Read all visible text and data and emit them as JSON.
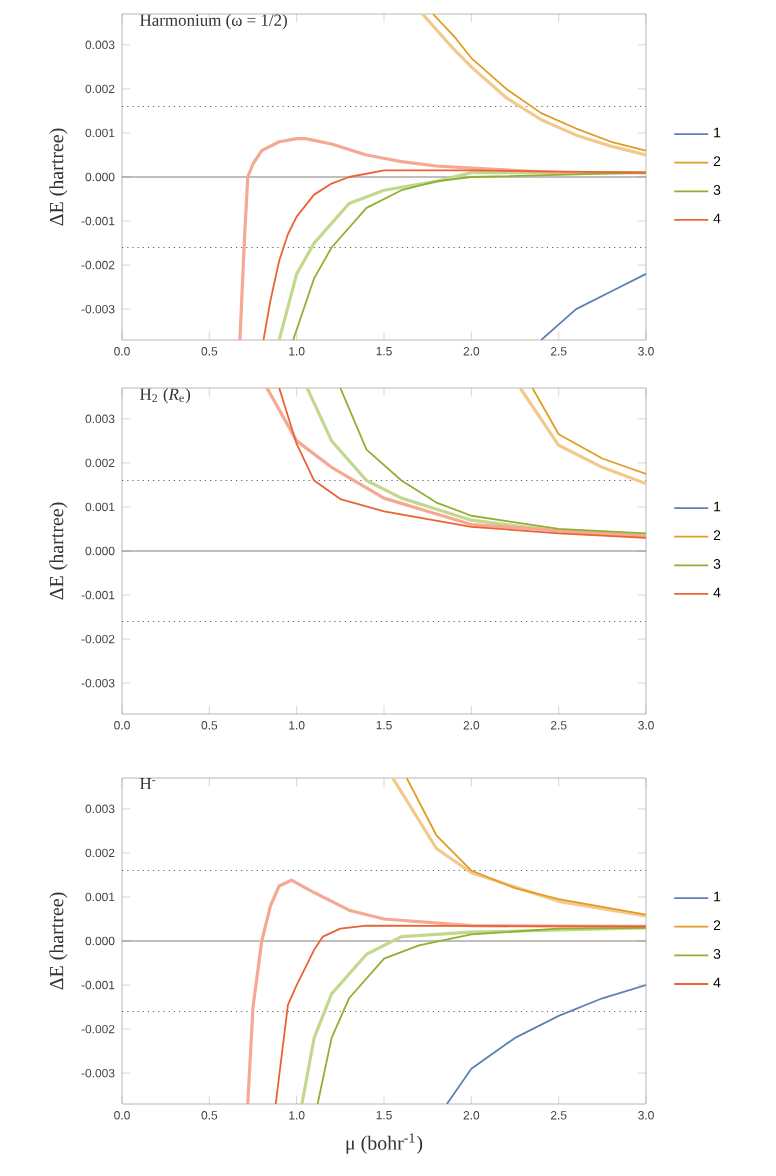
{
  "chart_data": [
    {
      "type": "line",
      "title": "Harmonium (ω = 1/2)",
      "ylabel": "ΔE (hartree)",
      "legend": "right",
      "xlim": [
        0,
        3
      ],
      "ylim": [
        -0.0037,
        0.0037
      ],
      "xticks": [
        {
          "value": 0,
          "label": "0.0"
        },
        {
          "value": 0.5,
          "label": "0.5"
        },
        {
          "value": 1,
          "label": "1.0"
        },
        {
          "value": 1.5,
          "label": "1.5"
        },
        {
          "value": 2,
          "label": "2.0"
        },
        {
          "value": 2.5,
          "label": "2.5"
        },
        {
          "value": 3,
          "label": "3.0"
        }
      ],
      "yticks": [
        {
          "value": -0.003,
          "label": "-0.003"
        },
        {
          "value": -0.002,
          "label": "-0.002"
        },
        {
          "value": -0.001,
          "label": "-0.001"
        },
        {
          "value": 0,
          "label": "0.000"
        },
        {
          "value": 0.001,
          "label": "0.001"
        },
        {
          "value": 0.002,
          "label": "0.002"
        },
        {
          "value": 0.003,
          "label": "0.003"
        }
      ],
      "ref_lines": [
        {
          "axis": "y",
          "value": 0,
          "color": "#808080",
          "line_style": "solid"
        },
        {
          "axis": "y",
          "value": 0.0016,
          "color": "#606060",
          "line_style": "dotted"
        },
        {
          "axis": "y",
          "value": -0.0016,
          "color": "#606060",
          "line_style": "dotted"
        }
      ],
      "series": [
        {
          "color": "#f2c98a",
          "x": [
            1.72,
            1.9,
            2.0,
            2.2,
            2.4,
            2.6,
            2.8,
            3.0
          ],
          "values": [
            0.0037,
            0.0029,
            0.0025,
            0.0018,
            0.0013,
            0.00095,
            0.0007,
            0.0005
          ]
        },
        {
          "color": "#c3d88f",
          "x": [
            0.9,
            1.0,
            1.1,
            1.3,
            1.5,
            1.8,
            2.0,
            3.0
          ],
          "values": [
            -0.0037,
            -0.0022,
            -0.0015,
            -0.0006,
            -0.0003,
            -0.0001,
            0.0001,
            0.0001
          ]
        },
        {
          "color": "#f5a892",
          "x": [
            0.675,
            0.7,
            0.72,
            0.75,
            0.8,
            0.9,
            1.0,
            1.05,
            1.2,
            1.4,
            1.6,
            1.8,
            2.0,
            2.5,
            3.0
          ],
          "values": [
            -0.0037,
            -0.0015,
            0,
            0.0003,
            0.0006,
            0.0008,
            0.00087,
            0.00087,
            0.00075,
            0.0005,
            0.00035,
            0.00025,
            0.0002,
            0.0001,
            0.0001
          ]
        },
        {
          "name": "1",
          "color": "#5e81b5",
          "x": [
            2.4,
            2.6,
            2.8,
            3.0
          ],
          "values": [
            -0.0037,
            -0.003,
            -0.0026,
            -0.0022
          ]
        },
        {
          "name": "2",
          "color": "#e19c24",
          "x": [
            1.78,
            1.9,
            2.0,
            2.2,
            2.4,
            2.6,
            2.8,
            3.0
          ],
          "values": [
            0.0037,
            0.0032,
            0.0027,
            0.002,
            0.00145,
            0.0011,
            0.0008,
            0.0006
          ]
        },
        {
          "name": "3",
          "color": "#8fb032",
          "x": [
            0.98,
            1.1,
            1.2,
            1.4,
            1.6,
            1.8,
            2.0,
            3.0
          ],
          "values": [
            -0.0037,
            -0.0023,
            -0.0016,
            -0.0007,
            -0.0003,
            -0.0001,
            0,
            0.0001
          ]
        },
        {
          "name": "4",
          "color": "#eb6235",
          "x": [
            0.81,
            0.85,
            0.9,
            0.95,
            1.0,
            1.1,
            1.2,
            1.3,
            1.5,
            2.0,
            3.0
          ],
          "values": [
            -0.0037,
            -0.0028,
            -0.0019,
            -0.0013,
            -0.0009,
            -0.0004,
            -0.00015,
            0,
            0.00015,
            0.00015,
            0.0001
          ]
        }
      ]
    },
    {
      "type": "line",
      "title": "H$_{2}$ (*R*$_{e}$)",
      "ylabel": "ΔE (hartree)",
      "legend": "right",
      "xlim": [
        0,
        3
      ],
      "ylim": [
        -0.0037,
        0.0037
      ],
      "xticks": [
        {
          "value": 0,
          "label": "0.0"
        },
        {
          "value": 0.5,
          "label": "0.5"
        },
        {
          "value": 1,
          "label": "1.0"
        },
        {
          "value": 1.5,
          "label": "1.5"
        },
        {
          "value": 2,
          "label": "2.0"
        },
        {
          "value": 2.5,
          "label": "2.5"
        },
        {
          "value": 3,
          "label": "3.0"
        }
      ],
      "yticks": [
        {
          "value": -0.003,
          "label": "-0.003"
        },
        {
          "value": -0.002,
          "label": "-0.002"
        },
        {
          "value": -0.001,
          "label": "-0.001"
        },
        {
          "value": 0,
          "label": "0.000"
        },
        {
          "value": 0.001,
          "label": "0.001"
        },
        {
          "value": 0.002,
          "label": "0.002"
        },
        {
          "value": 0.003,
          "label": "0.003"
        }
      ],
      "ref_lines": [
        {
          "axis": "y",
          "value": 0,
          "color": "#808080",
          "line_style": "solid"
        },
        {
          "axis": "y",
          "value": 0.0016,
          "color": "#606060",
          "line_style": "dotted"
        },
        {
          "axis": "y",
          "value": -0.0016,
          "color": "#606060",
          "line_style": "dotted"
        }
      ],
      "series": [
        {
          "color": "#f2c98a",
          "x": [
            2.28,
            2.5,
            2.75,
            3.0
          ],
          "values": [
            0.0037,
            0.0024,
            0.0019,
            0.00153
          ]
        },
        {
          "color": "#c3d88f",
          "x": [
            1.06,
            1.2,
            1.4,
            1.6,
            2.0,
            2.5,
            3.0
          ],
          "values": [
            0.0037,
            0.0025,
            0.0016,
            0.0012,
            0.0007,
            0.00045,
            0.00035
          ]
        },
        {
          "color": "#f5a892",
          "x": [
            0.83,
            1.0,
            1.2,
            1.5,
            2.0,
            3.0
          ],
          "values": [
            0.0037,
            0.0025,
            0.0019,
            0.0012,
            0.0006,
            0.00033
          ]
        },
        {
          "name": "1",
          "color": "#5e81b5"
        },
        {
          "name": "2",
          "color": "#e19c24",
          "x": [
            2.35,
            2.5,
            2.75,
            3.0
          ],
          "values": [
            0.0037,
            0.00265,
            0.0021,
            0.00175
          ]
        },
        {
          "name": "3",
          "color": "#8fb032",
          "x": [
            1.25,
            1.4,
            1.6,
            1.8,
            2.0,
            2.5,
            3.0
          ],
          "values": [
            0.0037,
            0.0023,
            0.0016,
            0.0011,
            0.0008,
            0.0005,
            0.0004
          ]
        },
        {
          "name": "4",
          "color": "#eb6235",
          "x": [
            0.9,
            1.0,
            1.1,
            1.25,
            1.5,
            2.0,
            2.5,
            3.0
          ],
          "values": [
            0.0037,
            0.00243,
            0.0016,
            0.00118,
            0.0009,
            0.00055,
            0.0004,
            0.0003
          ]
        }
      ]
    },
    {
      "type": "line",
      "title": "H$^{-}$",
      "ylabel": "ΔE (hartree)",
      "xlabel": "μ (bohr$^{-1}$)",
      "legend": "right",
      "xlim": [
        0,
        3
      ],
      "ylim": [
        -0.0037,
        0.0037
      ],
      "xticks": [
        {
          "value": 0,
          "label": "0.0"
        },
        {
          "value": 0.5,
          "label": "0.5"
        },
        {
          "value": 1,
          "label": "1.0"
        },
        {
          "value": 1.5,
          "label": "1.5"
        },
        {
          "value": 2,
          "label": "2.0"
        },
        {
          "value": 2.5,
          "label": "2.5"
        },
        {
          "value": 3,
          "label": "3.0"
        }
      ],
      "yticks": [
        {
          "value": -0.003,
          "label": "-0.003"
        },
        {
          "value": -0.002,
          "label": "-0.002"
        },
        {
          "value": -0.001,
          "label": "-0.001"
        },
        {
          "value": 0,
          "label": "0.000"
        },
        {
          "value": 0.001,
          "label": "0.001"
        },
        {
          "value": 0.002,
          "label": "0.002"
        },
        {
          "value": 0.003,
          "label": "0.003"
        }
      ],
      "ref_lines": [
        {
          "axis": "y",
          "value": 0,
          "color": "#808080",
          "line_style": "solid"
        },
        {
          "axis": "y",
          "value": 0.0016,
          "color": "#606060",
          "line_style": "dotted"
        },
        {
          "axis": "y",
          "value": -0.0016,
          "color": "#606060",
          "line_style": "dotted"
        }
      ],
      "series": [
        {
          "color": "#f2c98a",
          "x": [
            1.55,
            1.8,
            2.0,
            2.5,
            3.0
          ],
          "values": [
            0.0037,
            0.0021,
            0.00155,
            0.0009,
            0.00057
          ]
        },
        {
          "color": "#c3d88f",
          "x": [
            1.03,
            1.1,
            1.2,
            1.4,
            1.6,
            2.0,
            3.0
          ],
          "values": [
            -0.0037,
            -0.0022,
            -0.0012,
            -0.0003,
            0.0001,
            0.0002,
            0.0003
          ]
        },
        {
          "color": "#f5a892",
          "x": [
            0.72,
            0.75,
            0.8,
            0.85,
            0.9,
            0.97,
            1.1,
            1.3,
            1.5,
            2.0,
            3.0
          ],
          "values": [
            -0.0037,
            -0.0015,
            0,
            0.0008,
            0.00125,
            0.00138,
            0.0011,
            0.0007,
            0.0005,
            0.00035,
            0.00033
          ]
        },
        {
          "name": "1",
          "color": "#5e81b5",
          "x": [
            1.86,
            2.0,
            2.25,
            2.5,
            2.75,
            3.0
          ],
          "values": [
            -0.0037,
            -0.0029,
            -0.0022,
            -0.0017,
            -0.0013,
            -0.001
          ]
        },
        {
          "name": "2",
          "color": "#e19c24",
          "x": [
            1.63,
            1.8,
            2.0,
            2.25,
            2.5,
            3.0
          ],
          "values": [
            0.0037,
            0.0024,
            0.0016,
            0.0012,
            0.00095,
            0.0006
          ]
        },
        {
          "name": "3",
          "color": "#8fb032",
          "x": [
            1.12,
            1.2,
            1.3,
            1.5,
            1.7,
            2.0,
            2.5,
            3.0
          ],
          "values": [
            -0.0037,
            -0.0022,
            -0.0013,
            -0.0004,
            -0.0001,
            0.00015,
            0.00028,
            0.0003
          ]
        },
        {
          "name": "4",
          "color": "#eb6235",
          "x": [
            0.88,
            0.95,
            1.0,
            1.1,
            1.15,
            1.25,
            1.4,
            3.0
          ],
          "values": [
            -0.0037,
            -0.00145,
            -0.001,
            -0.0002,
            0.0001,
            0.00028,
            0.00035,
            0.00033
          ]
        }
      ]
    }
  ]
}
